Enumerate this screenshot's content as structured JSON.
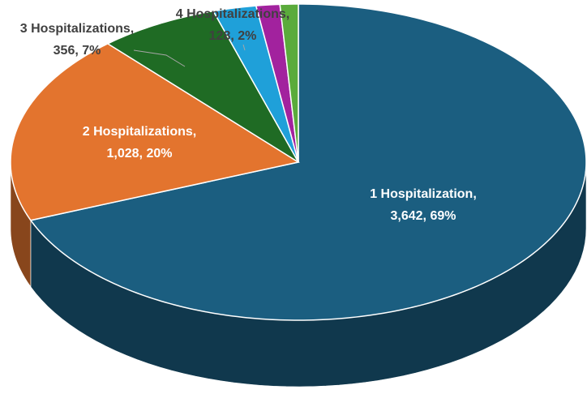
{
  "chart_data": {
    "type": "pie3d",
    "categories": [
      "1 Hospitalization,",
      "2 Hospitalizations,",
      "3 Hospitalizations,",
      "4 Hospitalizations,",
      null,
      null
    ],
    "values": [
      3642,
      1028,
      356,
      128,
      70,
      54
    ],
    "value_labels": [
      "3,642, 69%",
      "1,028, 20%",
      "356, 7%",
      "128, 2%",
      null,
      null
    ],
    "colors": [
      "#1b5e80",
      "#e3742e",
      "#1f6b24",
      "#1fa0d9",
      "#a2229e",
      "#5aab3b"
    ]
  }
}
